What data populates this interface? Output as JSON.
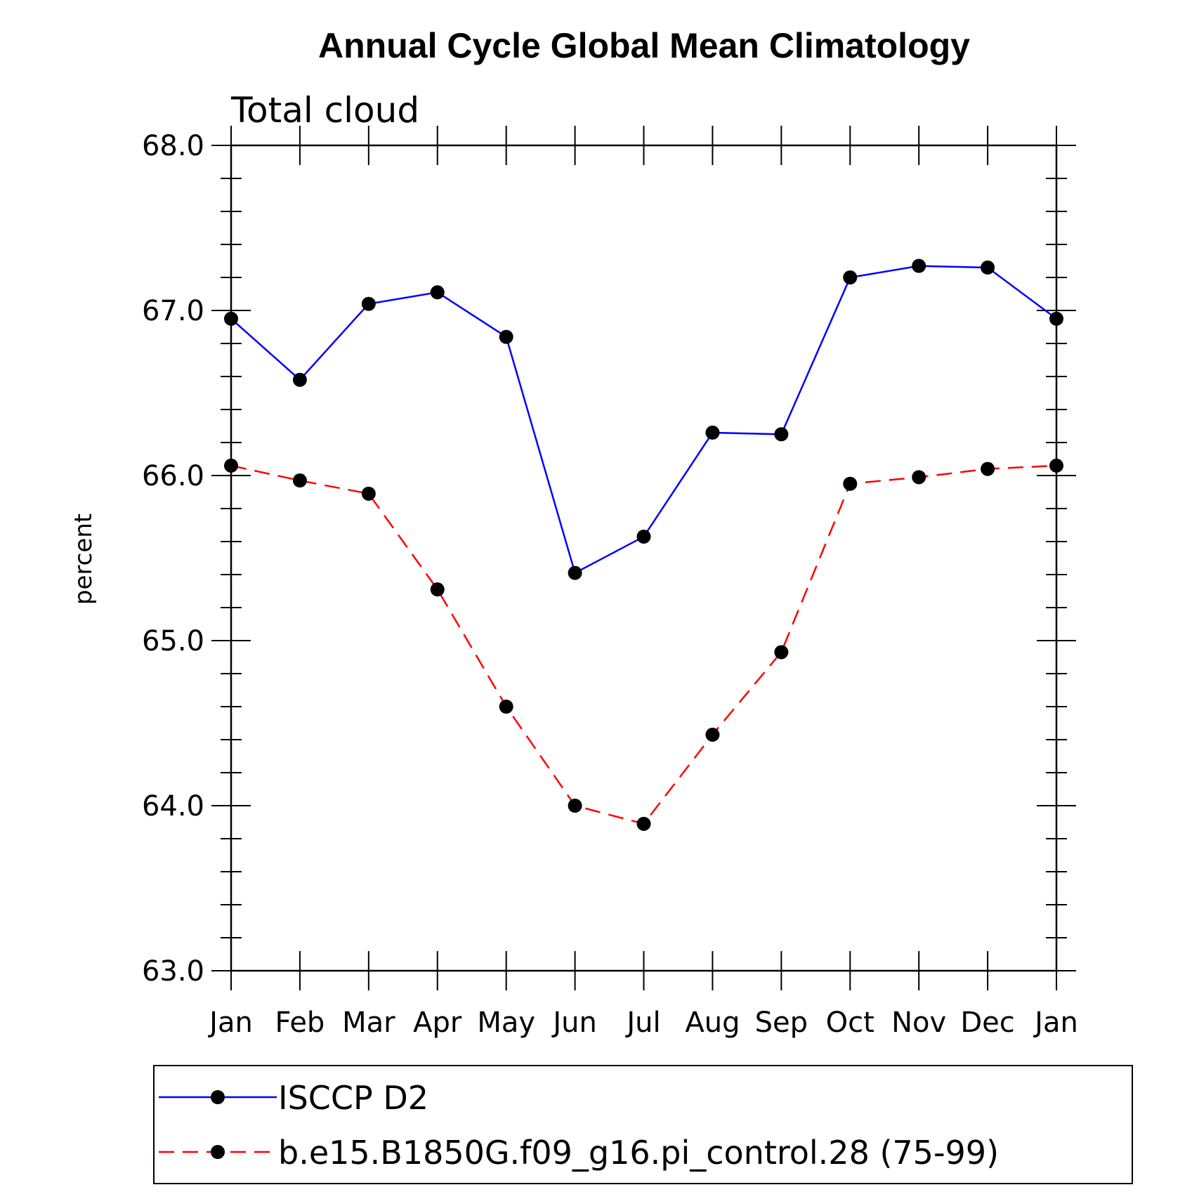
{
  "chart_data": {
    "type": "line",
    "title": "Annual Cycle Global Mean Climatology",
    "subtitle": "Total cloud",
    "xlabel": "",
    "ylabel": "percent",
    "ylim": [
      63.0,
      68.0
    ],
    "yticks": [
      "63.0",
      "64.0",
      "65.0",
      "66.0",
      "67.0",
      "68.0"
    ],
    "categories": [
      "Jan",
      "Feb",
      "Mar",
      "Apr",
      "May",
      "Jun",
      "Jul",
      "Aug",
      "Sep",
      "Oct",
      "Nov",
      "Dec",
      "Jan"
    ],
    "grid": false,
    "legend_position": "bottom",
    "series": [
      {
        "name": "ISCCP D2",
        "color": "#0000ff",
        "line_style": "solid",
        "marker": "filled-circle",
        "values": [
          66.95,
          66.58,
          67.04,
          67.11,
          66.84,
          65.41,
          65.63,
          66.26,
          66.25,
          67.2,
          67.27,
          67.26,
          66.95
        ]
      },
      {
        "name": "b.e15.B1850G.f09_g16.pi_control.28 (75-99)",
        "color": "#ff0000",
        "line_style": "dashed",
        "marker": "filled-circle",
        "values": [
          66.06,
          65.97,
          65.89,
          65.31,
          64.6,
          64.0,
          63.89,
          64.43,
          64.93,
          65.95,
          65.99,
          66.04,
          66.06
        ]
      }
    ]
  }
}
